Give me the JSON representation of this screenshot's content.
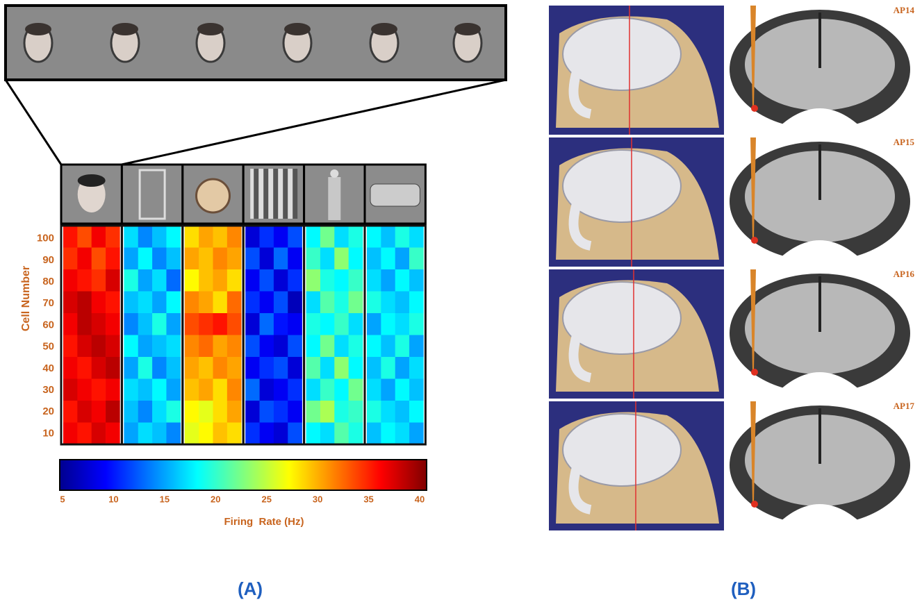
{
  "chart_data": {
    "type": "heatmap",
    "colormap": "jet",
    "ylabel": "Cell Number",
    "ylim": [
      5,
      106
    ],
    "yticks": [
      10,
      20,
      30,
      40,
      50,
      60,
      70,
      80,
      90,
      100
    ],
    "categories": [
      null,
      null,
      null,
      null,
      null,
      null
    ],
    "z": [
      [
        [
          35,
          33,
          36,
          34
        ],
        [
          34,
          36,
          33,
          35
        ],
        [
          36,
          35,
          34,
          37
        ],
        [
          37,
          38,
          36,
          35
        ],
        [
          36,
          38,
          37,
          36
        ],
        [
          35,
          37,
          38,
          37
        ],
        [
          36,
          35,
          37,
          38
        ],
        [
          37,
          36,
          35,
          36
        ],
        [
          35,
          37,
          36,
          38
        ],
        [
          36,
          35,
          37,
          36
        ]
      ],
      [
        [
          17,
          14,
          16,
          18
        ],
        [
          15,
          18,
          14,
          16
        ],
        [
          19,
          15,
          17,
          13
        ],
        [
          16,
          17,
          15,
          18
        ],
        [
          14,
          16,
          19,
          15
        ],
        [
          18,
          15,
          16,
          17
        ],
        [
          15,
          19,
          14,
          16
        ],
        [
          17,
          16,
          18,
          15
        ],
        [
          16,
          14,
          17,
          19
        ],
        [
          15,
          17,
          16,
          14
        ]
      ],
      [
        [
          28,
          30,
          29,
          31
        ],
        [
          30,
          29,
          31,
          30
        ],
        [
          27,
          29,
          30,
          28
        ],
        [
          31,
          30,
          28,
          32
        ],
        [
          33,
          34,
          35,
          33
        ],
        [
          31,
          32,
          30,
          31
        ],
        [
          30,
          29,
          31,
          30
        ],
        [
          29,
          30,
          28,
          31
        ],
        [
          27,
          26,
          28,
          30
        ],
        [
          26,
          27,
          29,
          28
        ]
      ],
      [
        [
          8,
          11,
          9,
          12
        ],
        [
          12,
          8,
          13,
          9
        ],
        [
          9,
          12,
          8,
          11
        ],
        [
          11,
          9,
          12,
          7
        ],
        [
          8,
          13,
          10,
          9
        ],
        [
          12,
          9,
          8,
          12
        ],
        [
          9,
          11,
          12,
          8
        ],
        [
          13,
          8,
          9,
          11
        ],
        [
          8,
          12,
          11,
          9
        ],
        [
          11,
          9,
          8,
          12
        ]
      ],
      [
        [
          18,
          22,
          17,
          19
        ],
        [
          20,
          17,
          23,
          18
        ],
        [
          23,
          19,
          18,
          20
        ],
        [
          17,
          21,
          19,
          22
        ],
        [
          19,
          18,
          20,
          17
        ],
        [
          18,
          22,
          17,
          19
        ],
        [
          21,
          17,
          23,
          18
        ],
        [
          17,
          20,
          18,
          22
        ],
        [
          22,
          24,
          19,
          20
        ],
        [
          18,
          17,
          21,
          19
        ]
      ],
      [
        [
          18,
          16,
          19,
          17
        ],
        [
          16,
          18,
          15,
          20
        ],
        [
          17,
          15,
          18,
          16
        ],
        [
          19,
          17,
          16,
          18
        ],
        [
          15,
          18,
          17,
          19
        ],
        [
          18,
          16,
          19,
          15
        ],
        [
          16,
          19,
          15,
          17
        ],
        [
          17,
          15,
          18,
          16
        ],
        [
          19,
          17,
          16,
          18
        ],
        [
          16,
          18,
          17,
          15
        ]
      ]
    ],
    "colorbar": {
      "label": "Firing  Rate (Hz)",
      "lim": [
        5,
        40
      ],
      "ticks": [
        5,
        10,
        15,
        20,
        25,
        30,
        35,
        40
      ]
    }
  },
  "panel_labels": [
    "(A)",
    "(B)"
  ],
  "slice_labels": [
    "AP14",
    "AP15",
    "AP16",
    "AP17"
  ]
}
